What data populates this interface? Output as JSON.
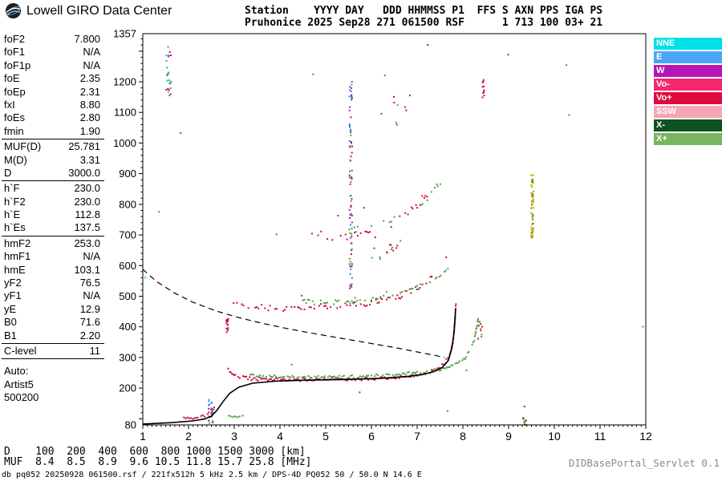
{
  "header": {
    "brand": "Lowell GIRO Data Center",
    "station_line1": "Station    YYYY DAY   DDD HHMMSS P1  FFS S AXN PPS IGA PS",
    "station_line2": "Pruhonice 2025 Sep28 271 061500 RSF      1 713 100 03+ 21"
  },
  "params": {
    "groups": [
      {
        "rows": [
          [
            "foF2",
            "7.800"
          ],
          [
            "foF1",
            "N/A"
          ],
          [
            "foF1p",
            "N/A"
          ],
          [
            "foE",
            "2.35"
          ],
          [
            "foEp",
            "2.31"
          ],
          [
            "fxI",
            "8.80"
          ],
          [
            "foEs",
            "2.80"
          ],
          [
            "fmin",
            "1.90"
          ]
        ]
      },
      {
        "rows": [
          [
            "MUF(D)",
            "25.781"
          ],
          [
            "M(D)",
            "3.31"
          ],
          [
            "D",
            "3000.0"
          ]
        ]
      },
      {
        "rows": [
          [
            "h`F",
            "230.0"
          ],
          [
            "h`F2",
            "230.0"
          ],
          [
            "h`E",
            "112.8"
          ],
          [
            "h`Es",
            "137.5"
          ]
        ]
      },
      {
        "rows": [
          [
            "hmF2",
            "253.0"
          ],
          [
            "hmF1",
            "N/A"
          ],
          [
            "hmE",
            "103.1"
          ],
          [
            "yF2",
            "76.5"
          ],
          [
            "yF1",
            "N/A"
          ],
          [
            "yE",
            "12.9"
          ],
          [
            "B0",
            "71.6"
          ],
          [
            "B1",
            "2.20"
          ]
        ]
      },
      {
        "rows": [
          [
            "C-level",
            "11"
          ]
        ]
      }
    ],
    "auto": [
      "Auto:",
      "Artist5",
      "500200"
    ]
  },
  "legend": [
    {
      "label": "NNE",
      "color": "#00E0E8"
    },
    {
      "label": "E",
      "color": "#4BA6F7"
    },
    {
      "label": "W",
      "color": "#B517B5"
    },
    {
      "label": "Vo-",
      "color": "#F5286E"
    },
    {
      "label": "Vo+",
      "color": "#DF0A3F"
    },
    {
      "label": "SSW",
      "color": "#F4A6B6"
    },
    {
      "label": "X-",
      "color": "#0D5220"
    },
    {
      "label": "X+",
      "color": "#77B55E"
    }
  ],
  "chart_data": {
    "type": "scatter",
    "title": "Pruhonice ionogram 2025 Sep28 061500",
    "x_range": [
      1,
      12
    ],
    "y_range": [
      80,
      1357
    ],
    "x_ticks": [
      1,
      2,
      3,
      4,
      5,
      6,
      7,
      8,
      9,
      10,
      11,
      12
    ],
    "y_tick_labels": [
      1357,
      1200,
      1100,
      1000,
      900,
      800,
      700,
      600,
      500,
      400,
      300,
      200,
      80
    ],
    "x_minor_step": 0.1,
    "y_minor_step": 20,
    "y_major_step": 100,
    "traces": [
      {
        "name": "f-trace-o",
        "color": "#CC0A3C",
        "size": 2,
        "jitter": 2.5,
        "density": 0.9,
        "points": [
          [
            2.85,
            272
          ],
          [
            2.92,
            252
          ],
          [
            3.05,
            238
          ],
          [
            3.3,
            232
          ],
          [
            3.7,
            229
          ],
          [
            4.2,
            228
          ],
          [
            4.8,
            228
          ],
          [
            5.4,
            229
          ],
          [
            6.0,
            231
          ],
          [
            6.5,
            234
          ],
          [
            6.9,
            239
          ],
          [
            7.15,
            246
          ],
          [
            7.35,
            255
          ],
          [
            7.5,
            266
          ],
          [
            7.62,
            283
          ],
          [
            7.71,
            308
          ],
          [
            7.78,
            350
          ],
          [
            7.82,
            405
          ],
          [
            7.85,
            478
          ]
        ]
      },
      {
        "name": "f-trace-x",
        "color": "#4E9E46",
        "size": 2,
        "jitter": 2.5,
        "density": 0.7,
        "points": [
          [
            3.35,
            241
          ],
          [
            3.7,
            238
          ],
          [
            4.2,
            236
          ],
          [
            4.8,
            236
          ],
          [
            5.4,
            237
          ],
          [
            6.0,
            239
          ],
          [
            6.5,
            243
          ],
          [
            7.0,
            249
          ],
          [
            7.35,
            257
          ],
          [
            7.65,
            268
          ],
          [
            7.9,
            283
          ],
          [
            8.05,
            300
          ],
          [
            8.17,
            327
          ],
          [
            8.26,
            365
          ],
          [
            8.31,
            405
          ],
          [
            8.34,
            432
          ]
        ]
      },
      {
        "name": "f-2hop-o",
        "color": "#CC0A3C",
        "size": 2,
        "jitter": 5,
        "density": 0.6,
        "points": [
          [
            2.95,
            478
          ],
          [
            3.2,
            468
          ],
          [
            3.6,
            462
          ],
          [
            4.0,
            460
          ],
          [
            4.5,
            460
          ],
          [
            5.0,
            463
          ],
          [
            5.5,
            469
          ],
          [
            5.9,
            477
          ],
          [
            6.2,
            486
          ],
          [
            6.5,
            497
          ],
          [
            6.8,
            511
          ],
          [
            7.0,
            524
          ],
          [
            7.2,
            541
          ],
          [
            7.35,
            558
          ]
        ]
      },
      {
        "name": "f-2hop-x",
        "color": "#4E9E46",
        "size": 2,
        "jitter": 5,
        "density": 0.5,
        "points": [
          [
            4.5,
            481
          ],
          [
            5.0,
            479
          ],
          [
            5.5,
            484
          ],
          [
            6.0,
            493
          ],
          [
            6.4,
            504
          ],
          [
            6.8,
            519
          ],
          [
            7.1,
            534
          ],
          [
            7.4,
            556
          ],
          [
            7.6,
            580
          ],
          [
            7.72,
            600
          ]
        ]
      },
      {
        "name": "f-3hop-o",
        "color": "#CC0A3C",
        "size": 2,
        "jitter": 7,
        "density": 0.3,
        "points": [
          [
            4.7,
            706
          ],
          [
            5.0,
            698
          ],
          [
            5.4,
            698
          ],
          [
            5.8,
            706
          ],
          [
            6.2,
            722
          ],
          [
            6.5,
            742
          ],
          [
            6.8,
            768
          ],
          [
            7.0,
            795
          ],
          [
            7.2,
            830
          ],
          [
            7.35,
            868
          ]
        ]
      },
      {
        "name": "f-3hop-x",
        "color": "#4E9E46",
        "size": 2,
        "jitter": 7,
        "density": 0.28,
        "points": [
          [
            5.3,
            712
          ],
          [
            5.7,
            712
          ],
          [
            6.1,
            724
          ],
          [
            6.5,
            744
          ],
          [
            6.9,
            777
          ],
          [
            7.2,
            817
          ],
          [
            7.45,
            862
          ],
          [
            7.6,
            897
          ]
        ]
      },
      {
        "name": "e-trace",
        "color": "#CC0A3C",
        "size": 2,
        "jitter": 1.8,
        "density": 0.85,
        "points": [
          [
            1.9,
            101
          ],
          [
            2.05,
            102
          ],
          [
            2.2,
            105
          ],
          [
            2.35,
            109
          ],
          [
            2.45,
            116
          ],
          [
            2.52,
            125
          ],
          [
            2.58,
            138
          ]
        ]
      },
      {
        "name": "es-trace",
        "color": "#4E9E46",
        "size": 2,
        "jitter": 1.5,
        "density": 0.8,
        "points": [
          [
            2.88,
            110
          ],
          [
            3.0,
            108
          ],
          [
            3.12,
            108
          ],
          [
            3.22,
            109
          ]
        ]
      }
    ],
    "strips": [
      {
        "name": "noise-1.6MHz",
        "f": 1.57,
        "fspread": 0.06,
        "h1": 1150,
        "h2": 1315,
        "n": 26,
        "colors": [
          "#B517B5",
          "#4E9E46",
          "#00C3CF",
          "#CC0A3C"
        ]
      },
      {
        "name": "noise-5.55MHz",
        "f": 5.55,
        "fspread": 0.03,
        "h1": 520,
        "h2": 1210,
        "n": 85,
        "colors": [
          "#B517B5",
          "#CC0A3C",
          "#4E9E46",
          "#2E7BE5"
        ]
      },
      {
        "name": "noise-8.45MHz",
        "f": 8.45,
        "fspread": 0.02,
        "h1": 1145,
        "h2": 1212,
        "n": 13,
        "colors": [
          "#CC0A3C",
          "#CC0A3C",
          "#CC0A3C",
          "#2E7BE5"
        ]
      },
      {
        "name": "noise-9.5MHz",
        "f": 9.52,
        "fspread": 0.03,
        "h1": 690,
        "h2": 908,
        "n": 55,
        "colors": [
          "#A8A800",
          "#8C8C00",
          "#C0B000"
        ]
      },
      {
        "name": "spread-2.85MHz",
        "f": 2.85,
        "fspread": 0.02,
        "h1": 382,
        "h2": 426,
        "n": 15,
        "colors": [
          "#CC0A3C"
        ]
      },
      {
        "name": "e-region-cluster",
        "f": 2.5,
        "fspread": 0.06,
        "h1": 85,
        "h2": 165,
        "n": 22,
        "colors": [
          "#00C3CF",
          "#2E7BE5",
          "#CC0A3C"
        ]
      },
      {
        "name": "bottom-9.35MHz",
        "f": 9.35,
        "fspread": 0.04,
        "h1": 80,
        "h2": 106,
        "n": 9,
        "colors": [
          "#CC0A3C",
          "#4E9E46"
        ]
      },
      {
        "name": "mid-echoes",
        "f": 6.35,
        "fspread": 0.35,
        "h1": 615,
        "h2": 700,
        "n": 15,
        "colors": [
          "#4E9E46",
          "#CC0A3C"
        ]
      },
      {
        "name": "high-echoes",
        "f": 6.6,
        "fspread": 0.4,
        "h1": 980,
        "h2": 1160,
        "n": 9,
        "colors": [
          "#CC0A3C",
          "#4E9E46",
          "#B517B5"
        ]
      },
      {
        "name": "es-8.4MHz",
        "f": 8.38,
        "fspread": 0.05,
        "h1": 352,
        "h2": 420,
        "n": 11,
        "colors": [
          "#E08A00",
          "#CC0A3C",
          "#4E9E46"
        ]
      }
    ],
    "speckle": {
      "n": 20,
      "colors": [
        "#CC0A3C",
        "#4E9E46",
        "#B517B5",
        "#2E7BE5",
        "#00C3CF"
      ]
    },
    "profile_line": {
      "name": "artist-profile",
      "points": [
        [
          1.0,
          83
        ],
        [
          1.6,
          87
        ],
        [
          2.1,
          93
        ],
        [
          2.35,
          99
        ],
        [
          2.5,
          108
        ],
        [
          2.62,
          127
        ],
        [
          2.75,
          155
        ],
        [
          2.9,
          183
        ],
        [
          3.1,
          203
        ],
        [
          3.4,
          216
        ],
        [
          3.9,
          223
        ],
        [
          4.6,
          226
        ],
        [
          5.4,
          228
        ],
        [
          6.2,
          232
        ],
        [
          6.8,
          238
        ],
        [
          7.1,
          244
        ],
        [
          7.35,
          253
        ],
        [
          7.55,
          267
        ],
        [
          7.68,
          290
        ],
        [
          7.76,
          330
        ],
        [
          7.81,
          385
        ],
        [
          7.84,
          460
        ]
      ]
    },
    "muf_curve": {
      "name": "muf-transmission-curve",
      "style": "dashed",
      "points": [
        [
          1.0,
          588
        ],
        [
          1.3,
          548
        ],
        [
          1.7,
          510
        ],
        [
          2.1,
          480
        ],
        [
          2.6,
          452
        ],
        [
          3.1,
          430
        ],
        [
          3.6,
          412
        ],
        [
          4.1,
          396
        ],
        [
          4.6,
          382
        ],
        [
          5.1,
          369
        ],
        [
          5.6,
          356
        ],
        [
          6.1,
          343
        ],
        [
          6.6,
          330
        ],
        [
          7.0,
          318
        ],
        [
          7.35,
          308
        ],
        [
          7.6,
          300
        ]
      ]
    }
  },
  "footer": {
    "d_row": "D    100  200  400  600  800 1000 1500 3000 [km]",
    "muf_row": "MUF  8.4  8.5  8.9  9.6 10.5 11.8 15.7 25.8 [MHz]",
    "servlet": "DIDBasePortal_Servlet 0.1",
    "status": "db pq052 20250928 061500.rsf / 221fx512h 5 kHz 2.5 km / DPS-4D PQ052 50 / 50.0 N 14.6 E"
  }
}
